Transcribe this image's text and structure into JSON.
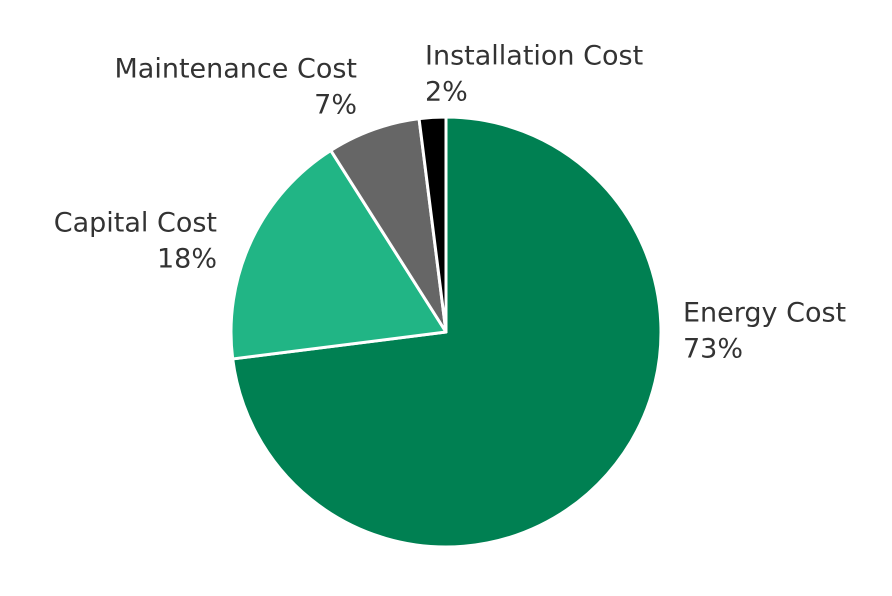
{
  "chart_data": {
    "type": "pie",
    "categories": [
      "Energy Cost",
      "Capital Cost",
      "Maintenance Cost",
      "Installation Cost"
    ],
    "values": [
      73,
      18,
      7,
      2
    ],
    "value_labels": [
      "73%",
      "18%",
      "7%",
      "2%"
    ],
    "colors": [
      "#008052",
      "#21b585",
      "#666666",
      "#000000"
    ]
  }
}
